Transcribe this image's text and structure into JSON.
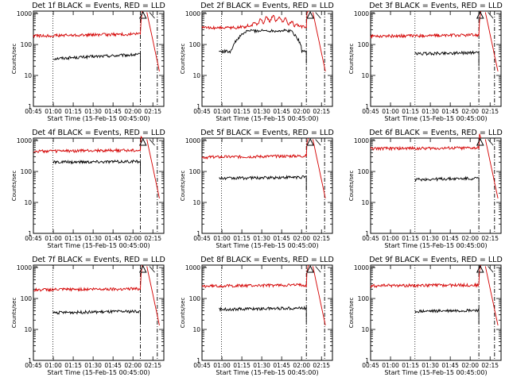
{
  "colors": {
    "events": "#000000",
    "lld": "#d40000",
    "axes": "#000000",
    "background": "#ffffff"
  },
  "chart_data": [
    {
      "type": "line",
      "title": "Det 1f BLACK = Events, RED = LLD",
      "xlabel": "Start Time (15-Feb-15 00:45:00)",
      "ylabel": "Counts/sec",
      "yscale": "log",
      "ylim": [
        1,
        1200
      ],
      "xlim": [
        0,
        100
      ],
      "xticks": [
        "00:45",
        "01:00",
        "01:15",
        "01:30",
        "01:45",
        "02:00",
        "02:15"
      ],
      "yticks": [
        "1",
        "10",
        "100",
        "1000"
      ],
      "grid": false,
      "markers": {
        "dotted": [
          15
        ],
        "dashdot": [
          82,
          95
        ],
        "saa_symbol_x": 84
      },
      "series": [
        {
          "name": "Events",
          "start": 15,
          "end": 82,
          "level": 35,
          "trend": 0.35
        },
        {
          "name": "LLD",
          "start": 0,
          "end": 82,
          "level": 190,
          "trend": 0.15
        }
      ]
    },
    {
      "type": "line",
      "title": "Det 2f BLACK = Events, RED = LLD",
      "xlabel": "Start Time (15-Feb-15 00:45:00)",
      "ylabel": "Counts/sec",
      "yscale": "log",
      "ylim": [
        1,
        1200
      ],
      "xlim": [
        0,
        100
      ],
      "xticks": [
        "00:45",
        "01:00",
        "01:15",
        "01:30",
        "01:45",
        "02:00",
        "02:15"
      ],
      "yticks": [
        "1",
        "10",
        "100",
        "1000"
      ],
      "grid": false,
      "markers": {
        "dotted": [
          15
        ],
        "dashdot": [
          80,
          94
        ],
        "saa_symbol_x": 83
      },
      "series": [
        {
          "name": "Events",
          "start": 13,
          "end": 80,
          "level": 60,
          "shape": "plateau",
          "peak": 280
        },
        {
          "name": "LLD",
          "start": 0,
          "end": 80,
          "level": 350,
          "shape": "bump",
          "peak": 800
        }
      ]
    },
    {
      "type": "line",
      "title": "Det 3f BLACK = Events, RED = LLD",
      "xlabel": "Start Time (15-Feb-15 00:45:00)",
      "ylabel": "Counts/sec",
      "yscale": "log",
      "ylim": [
        1,
        1200
      ],
      "xlim": [
        0,
        100
      ],
      "xticks": [
        "00:45",
        "01:00",
        "01:15",
        "01:30",
        "01:45",
        "02:00",
        "02:15"
      ],
      "yticks": [
        "1",
        "10",
        "100",
        "1000"
      ],
      "grid": false,
      "markers": {
        "dotted": [
          34
        ],
        "dashdot": [
          83,
          95
        ],
        "saa_symbol_x": 84
      },
      "series": [
        {
          "name": "Events",
          "start": 34,
          "end": 83,
          "level": 50,
          "trend": 0.1
        },
        {
          "name": "LLD",
          "start": 0,
          "end": 83,
          "level": 185,
          "trend": 0.1
        }
      ]
    },
    {
      "type": "line",
      "title": "Det 4f BLACK = Events, RED = LLD",
      "xlabel": "Start Time (15-Feb-15 00:45:00)",
      "ylabel": "Counts/sec",
      "yscale": "log",
      "ylim": [
        1,
        1200
      ],
      "xlim": [
        0,
        100
      ],
      "xticks": [
        "00:45",
        "01:00",
        "01:15",
        "01:30",
        "01:45",
        "02:00",
        "02:15"
      ],
      "yticks": [
        "1",
        "10",
        "100",
        "1000"
      ],
      "grid": false,
      "markers": {
        "dotted": [
          15
        ],
        "dashdot": [
          82,
          95
        ],
        "saa_symbol_x": 84
      },
      "series": [
        {
          "name": "Events",
          "start": 15,
          "end": 82,
          "level": 200,
          "trend": 0.05
        },
        {
          "name": "LLD",
          "start": 0,
          "end": 82,
          "level": 450,
          "trend": 0.1
        }
      ]
    },
    {
      "type": "line",
      "title": "Det 5f BLACK = Events, RED = LLD",
      "xlabel": "Start Time (15-Feb-15 00:45:00)",
      "ylabel": "Counts/sec",
      "yscale": "log",
      "ylim": [
        1,
        1200
      ],
      "xlim": [
        0,
        100
      ],
      "xticks": [
        "00:45",
        "01:00",
        "01:15",
        "01:30",
        "01:45",
        "02:00",
        "02:15"
      ],
      "yticks": [
        "1",
        "10",
        "100",
        "1000"
      ],
      "grid": false,
      "markers": {
        "dotted": [
          15
        ],
        "dashdot": [
          80,
          94
        ],
        "saa_symbol_x": 83
      },
      "series": [
        {
          "name": "Events",
          "start": 13,
          "end": 80,
          "level": 60,
          "trend": 0.1
        },
        {
          "name": "LLD",
          "start": 0,
          "end": 80,
          "level": 290,
          "trend": 0.1
        }
      ]
    },
    {
      "type": "line",
      "title": "Det 6f BLACK = Events, RED = LLD",
      "xlabel": "Start Time (15-Feb-15 00:45:00)",
      "ylabel": "Counts/sec",
      "yscale": "log",
      "ylim": [
        1,
        1200
      ],
      "xlim": [
        0,
        100
      ],
      "xticks": [
        "00:45",
        "01:00",
        "01:15",
        "01:30",
        "01:45",
        "02:00",
        "02:15"
      ],
      "yticks": [
        "1",
        "10",
        "100",
        "1000"
      ],
      "grid": false,
      "markers": {
        "dotted": [
          34
        ],
        "dashdot": [
          83,
          95
        ],
        "saa_symbol_x": 84
      },
      "series": [
        {
          "name": "Events",
          "start": 34,
          "end": 83,
          "level": 55,
          "trend": 0.1
        },
        {
          "name": "LLD",
          "start": 0,
          "end": 83,
          "level": 550,
          "trend": 0.05
        }
      ]
    },
    {
      "type": "line",
      "title": "Det 7f BLACK = Events, RED = LLD",
      "xlabel": "Start Time (15-Feb-15 00:45:00)",
      "ylabel": "Counts/sec",
      "yscale": "log",
      "ylim": [
        1,
        1200
      ],
      "xlim": [
        0,
        100
      ],
      "xticks": [
        "00:45",
        "01:00",
        "01:15",
        "01:30",
        "01:45",
        "02:00",
        "02:15"
      ],
      "yticks": [
        "1",
        "10",
        "100",
        "1000"
      ],
      "grid": false,
      "markers": {
        "dotted": [
          15
        ],
        "dashdot": [
          82,
          95
        ],
        "saa_symbol_x": 84
      },
      "series": [
        {
          "name": "Events",
          "start": 15,
          "end": 82,
          "level": 35,
          "trend": 0.1
        },
        {
          "name": "LLD",
          "start": 0,
          "end": 82,
          "level": 190,
          "trend": 0.1
        }
      ]
    },
    {
      "type": "line",
      "title": "Det 8f BLACK = Events, RED = LLD",
      "xlabel": "Start Time (15-Feb-15 00:45:00)",
      "ylabel": "Counts/sec",
      "yscale": "log",
      "ylim": [
        1,
        1200
      ],
      "xlim": [
        0,
        100
      ],
      "xticks": [
        "00:45",
        "01:00",
        "01:15",
        "01:30",
        "01:45",
        "02:00",
        "02:15"
      ],
      "yticks": [
        "1",
        "10",
        "100",
        "1000"
      ],
      "grid": false,
      "markers": {
        "dotted": [
          15
        ],
        "dashdot": [
          80,
          94
        ],
        "saa_symbol_x": 83
      },
      "series": [
        {
          "name": "Events",
          "start": 13,
          "end": 80,
          "level": 45,
          "trend": 0.1
        },
        {
          "name": "LLD",
          "start": 0,
          "end": 80,
          "level": 250,
          "trend": 0.1
        }
      ]
    },
    {
      "type": "line",
      "title": "Det 9f BLACK = Events, RED = LLD",
      "xlabel": "Start Time (15-Feb-15 00:45:00)",
      "ylabel": "Counts/sec",
      "yscale": "log",
      "ylim": [
        1,
        1200
      ],
      "xlim": [
        0,
        100
      ],
      "xticks": [
        "00:45",
        "01:00",
        "01:15",
        "01:30",
        "01:45",
        "02:00",
        "02:15"
      ],
      "yticks": [
        "1",
        "10",
        "100",
        "1000"
      ],
      "grid": false,
      "markers": {
        "dotted": [
          34
        ],
        "dashdot": [
          83,
          95
        ],
        "saa_symbol_x": 84
      },
      "series": [
        {
          "name": "Events",
          "start": 34,
          "end": 83,
          "level": 38,
          "trend": 0.1
        },
        {
          "name": "LLD",
          "start": 0,
          "end": 83,
          "level": 260,
          "trend": 0.05
        }
      ]
    }
  ]
}
